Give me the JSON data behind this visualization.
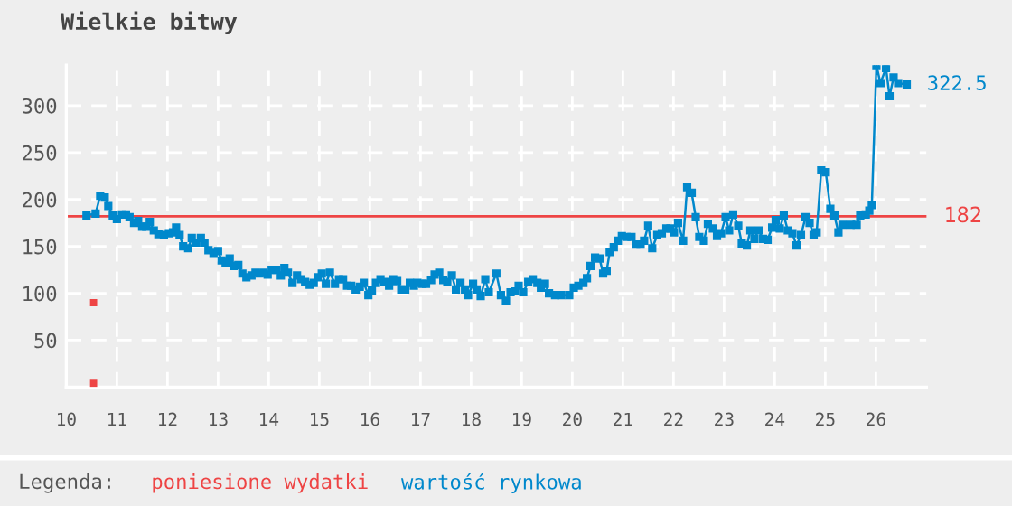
{
  "chart_data": {
    "type": "line",
    "title": "Wielkie bitwy",
    "legend_title": "Legenda:",
    "legend": "bottom",
    "grid": true,
    "marker": "square",
    "line_style": "solid",
    "xlim": [
      10,
      27
    ],
    "xticks": [
      10,
      11,
      12,
      13,
      14,
      15,
      16,
      17,
      18,
      19,
      20,
      21,
      22,
      23,
      24,
      25,
      26
    ],
    "ylim": [
      0,
      343
    ],
    "yticks": [
      50,
      100,
      150,
      200,
      250,
      300
    ],
    "ref_lines": [
      {
        "axis": "y",
        "value": 182,
        "label": "182",
        "color": "#ee4444"
      }
    ],
    "annotations": [
      {
        "text": "322.5",
        "x": 26.61,
        "y": 322.5
      }
    ],
    "series": [
      {
        "name": "poniesione wydatki",
        "type": "scatter",
        "color": "#ee4444",
        "x": [
          10.54,
          10.54
        ],
        "values": [
          90,
          4
        ]
      },
      {
        "name": "wartość rynkowa",
        "color": "#0088cc",
        "x": [
          10.4,
          10.58,
          10.67,
          10.76,
          10.83,
          10.92,
          11.0,
          11.1,
          11.18,
          11.25,
          11.34,
          11.42,
          11.5,
          11.58,
          11.65,
          11.73,
          11.82,
          11.93,
          12.03,
          12.11,
          12.17,
          12.24,
          12.31,
          12.41,
          12.48,
          12.57,
          12.66,
          12.73,
          12.81,
          12.91,
          13.0,
          13.07,
          13.15,
          13.23,
          13.31,
          13.4,
          13.48,
          13.56,
          13.66,
          13.74,
          13.82,
          13.9,
          13.98,
          14.06,
          14.15,
          14.24,
          14.31,
          14.38,
          14.47,
          14.56,
          14.64,
          14.72,
          14.81,
          14.89,
          14.97,
          15.05,
          15.13,
          15.21,
          15.31,
          15.39,
          15.47,
          15.55,
          15.63,
          15.72,
          15.8,
          15.88,
          15.97,
          16.04,
          16.12,
          16.21,
          16.29,
          16.38,
          16.46,
          16.54,
          16.62,
          16.7,
          16.79,
          16.87,
          16.94,
          17.04,
          17.11,
          17.21,
          17.28,
          17.37,
          17.45,
          17.53,
          17.62,
          17.7,
          17.79,
          17.88,
          17.94,
          18.04,
          18.11,
          18.19,
          18.28,
          18.35,
          18.5,
          18.59,
          18.69,
          18.78,
          18.87,
          18.94,
          19.03,
          19.13,
          19.22,
          19.31,
          19.38,
          19.46,
          19.54,
          19.66,
          19.78,
          19.94,
          20.03,
          20.12,
          20.22,
          20.29,
          20.36,
          20.45,
          20.54,
          20.61,
          20.68,
          20.74,
          20.82,
          20.9,
          20.98,
          21.07,
          21.17,
          21.26,
          21.35,
          21.42,
          21.5,
          21.58,
          21.68,
          21.77,
          21.86,
          21.94,
          22.01,
          22.09,
          22.19,
          22.27,
          22.36,
          22.44,
          22.51,
          22.6,
          22.68,
          22.78,
          22.86,
          22.94,
          23.03,
          23.1,
          23.18,
          23.28,
          23.35,
          23.45,
          23.52,
          23.6,
          23.68,
          23.77,
          23.86,
          23.95,
          24.02,
          24.1,
          24.18,
          24.26,
          24.35,
          24.43,
          24.52,
          24.61,
          24.69,
          24.77,
          24.83,
          24.92,
          25.01,
          25.1,
          25.18,
          25.26,
          25.34,
          25.5,
          25.62,
          25.69,
          25.8,
          25.87,
          25.92,
          26.01,
          26.09,
          26.2,
          26.27,
          26.35,
          26.44,
          26.61
        ],
        "values": [
          183,
          185,
          204,
          202,
          193,
          183,
          179,
          184,
          184,
          181,
          175,
          177,
          171,
          171,
          176,
          167,
          163,
          162,
          164,
          165,
          170,
          162,
          150,
          148,
          159,
          154,
          159,
          154,
          146,
          143,
          145,
          135,
          133,
          137,
          129,
          130,
          121,
          117,
          119,
          122,
          121,
          122,
          120,
          125,
          125,
          119,
          127,
          122,
          111,
          119,
          115,
          112,
          109,
          111,
          117,
          121,
          110,
          122,
          110,
          115,
          115,
          108,
          108,
          104,
          107,
          111,
          98,
          103,
          111,
          115,
          112,
          108,
          115,
          113,
          104,
          104,
          111,
          108,
          111,
          110,
          110,
          114,
          120,
          122,
          114,
          112,
          119,
          104,
          111,
          104,
          98,
          110,
          104,
          97,
          115,
          101,
          121,
          98,
          92,
          101,
          102,
          108,
          101,
          112,
          115,
          111,
          106,
          110,
          100,
          98,
          98,
          98,
          106,
          108,
          111,
          116,
          129,
          138,
          137,
          121,
          124,
          144,
          149,
          156,
          161,
          160,
          160,
          152,
          152,
          156,
          172,
          148,
          162,
          164,
          169,
          169,
          165,
          175,
          156,
          213,
          207,
          181,
          160,
          156,
          174,
          169,
          161,
          164,
          181,
          167,
          184,
          172,
          153,
          151,
          167,
          158,
          167,
          158,
          157,
          170,
          178,
          169,
          183,
          167,
          164,
          151,
          162,
          181,
          175,
          162,
          165,
          231,
          229,
          190,
          183,
          165,
          173,
          173,
          173,
          183,
          184,
          188,
          194,
          343,
          324,
          340,
          310,
          330,
          324,
          322.5
        ]
      }
    ]
  }
}
